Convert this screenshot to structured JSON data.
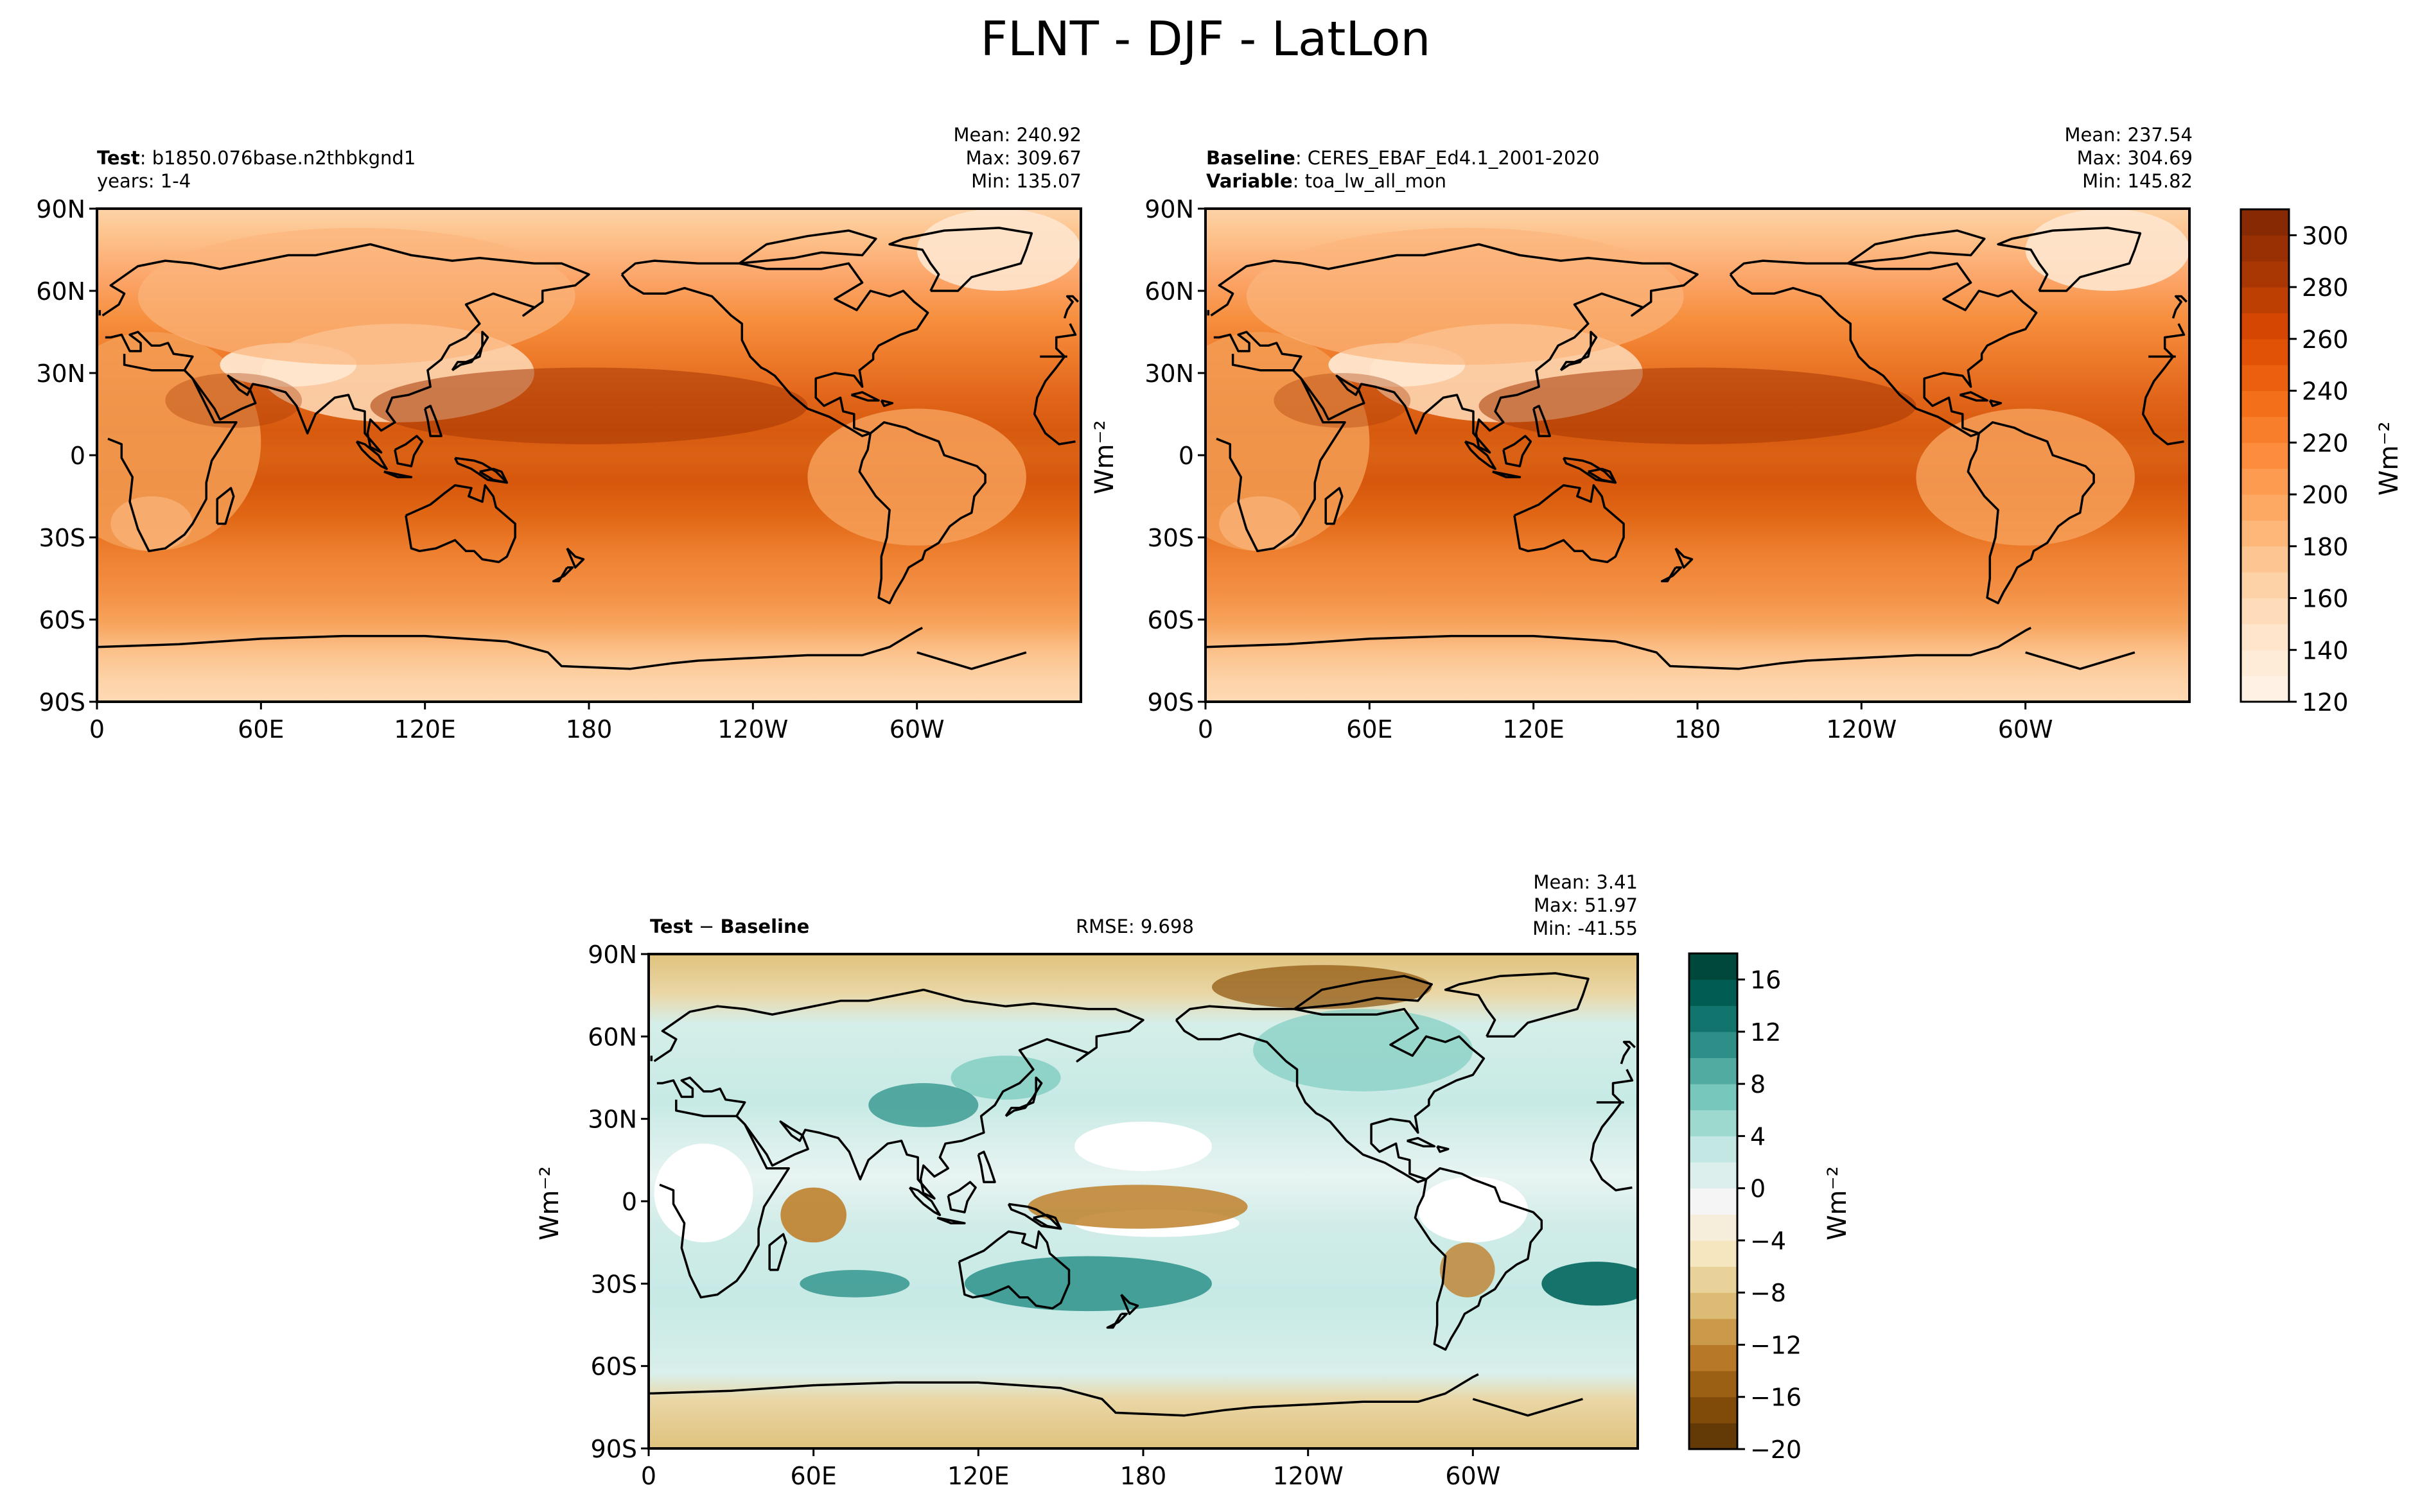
{
  "figure": {
    "title": "FLNT - DJF - LatLon"
  },
  "colors": {
    "orange_scale": [
      "#fff5eb",
      "#fee6ce",
      "#fdd0a2",
      "#fdae6b",
      "#fd8d3c",
      "#f16913",
      "#d94801",
      "#a63603",
      "#7f2704"
    ],
    "diverging_scale": [
      "#543005",
      "#8c510a",
      "#bf812d",
      "#dfc27d",
      "#f6e8c3",
      "#f5f5f5",
      "#c7eae5",
      "#80cdc1",
      "#35978f",
      "#01665e",
      "#003c30"
    ],
    "coast": "#000000"
  },
  "panels": {
    "test": {
      "label_bold": "Test",
      "label_text": ": b1850.076base.n2thbkgnd1",
      "years": "years: 1-4",
      "mean": "Mean: 240.92",
      "max": "Max: 309.67",
      "min": "Min: 135.07"
    },
    "baseline": {
      "label_bold": "Baseline",
      "label_text": ": CERES_EBAF_Ed4.1_2001-2020",
      "var_bold": "Variable",
      "var_text": ": toa_lw_all_mon",
      "mean": "Mean: 237.54",
      "max": "Max: 304.69",
      "min": "Min: 145.82"
    },
    "diff": {
      "label_bold": "Test",
      "label_mid": " − ",
      "label_bold2": "Baseline",
      "rmse": "RMSE: 9.698",
      "mean": "Mean:  3.41",
      "max": "Max: 51.97",
      "min": "Min: -41.55"
    }
  },
  "units": {
    "main": "Wm⁻²"
  },
  "chart_data": [
    {
      "type": "heatmap",
      "name": "Test",
      "xticks": [
        "0",
        "60E",
        "120E",
        "180",
        "120W",
        "60W"
      ],
      "yticks": [
        "90N",
        "60N",
        "30N",
        "0",
        "30S",
        "60S",
        "90S"
      ],
      "stats": {
        "mean": 240.92,
        "max": 309.67,
        "min": 135.07
      }
    },
    {
      "type": "heatmap",
      "name": "Baseline",
      "xticks": [
        "0",
        "60E",
        "120E",
        "180",
        "120W",
        "60W"
      ],
      "yticks": [
        "90N",
        "60N",
        "30N",
        "0",
        "30S",
        "60S",
        "90S"
      ],
      "stats": {
        "mean": 237.54,
        "max": 304.69,
        "min": 145.82
      },
      "colorbar": {
        "range": [
          120,
          310
        ],
        "ticks": [
          120,
          140,
          160,
          180,
          200,
          220,
          240,
          260,
          280,
          300
        ],
        "label": "Wm⁻²"
      }
    },
    {
      "type": "heatmap",
      "name": "Test − Baseline",
      "xticks": [
        "0",
        "60E",
        "120E",
        "180",
        "120W",
        "60W"
      ],
      "yticks": [
        "90N",
        "60N",
        "30N",
        "0",
        "30S",
        "60S",
        "90S"
      ],
      "stats": {
        "mean": 3.41,
        "max": 51.97,
        "min": -41.55,
        "rmse": 9.698
      },
      "colorbar": {
        "range": [
          -20,
          18
        ],
        "ticks": [
          -20,
          -16,
          -12,
          -8,
          -4,
          0,
          4,
          8,
          12,
          16
        ],
        "tick_labels": [
          "−20",
          "−16",
          "−12",
          "−8",
          "−4",
          "0",
          "4",
          "8",
          "12",
          "16"
        ],
        "label": "Wm⁻²"
      }
    }
  ]
}
